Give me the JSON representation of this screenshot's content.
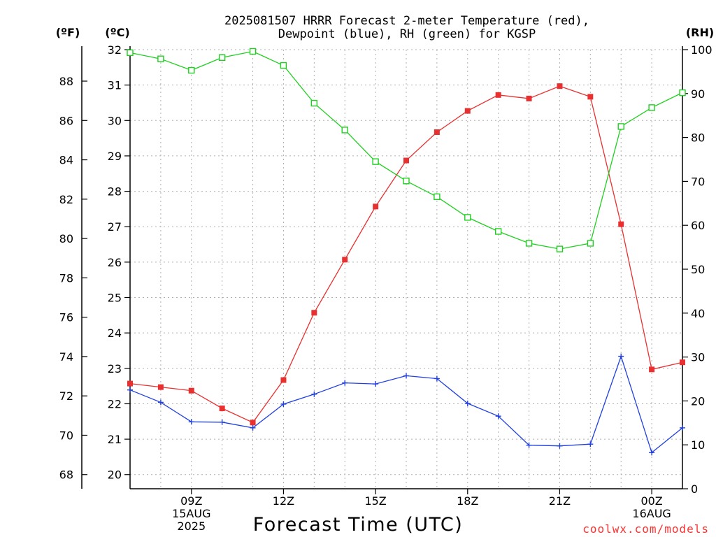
{
  "chart_data": {
    "type": "line",
    "title_line1": "2025081507 HRRR Forecast 2-meter Temperature (red),",
    "title_line2": "Dewpoint (blue), RH (green) for KGSP",
    "xlabel": "Forecast Time (UTC)",
    "watermark": "coolwx.com/models",
    "left_f_axis_label": "(ºF)",
    "left_c_axis_label": "(ºC)",
    "right_axis_label": "(RH)",
    "x_hours": [
      7,
      8,
      9,
      10,
      11,
      12,
      13,
      14,
      15,
      16,
      17,
      18,
      19,
      20,
      21,
      22,
      23,
      24,
      25
    ],
    "x_range": [
      7,
      25
    ],
    "x_ticks": [
      {
        "hour": 9,
        "lines": [
          "09Z",
          "15AUG",
          "2025"
        ]
      },
      {
        "hour": 12,
        "lines": [
          "12Z"
        ]
      },
      {
        "hour": 15,
        "lines": [
          "15Z"
        ]
      },
      {
        "hour": 18,
        "lines": [
          "18Z"
        ]
      },
      {
        "hour": 21,
        "lines": [
          "21Z"
        ]
      },
      {
        "hour": 24,
        "lines": [
          "00Z",
          "16AUG"
        ]
      }
    ],
    "y_c_range": [
      19.6,
      32
    ],
    "y_c_ticks": [
      20,
      21,
      22,
      23,
      24,
      25,
      26,
      27,
      28,
      29,
      30,
      31,
      32
    ],
    "y_f_ticks": [
      68,
      70,
      72,
      74,
      76,
      78,
      80,
      82,
      84,
      86,
      88
    ],
    "y_rh_range": [
      0,
      100
    ],
    "y_rh_ticks": [
      0,
      10,
      20,
      30,
      40,
      50,
      60,
      70,
      80,
      90,
      100
    ],
    "grid": true,
    "series": [
      {
        "name": "Temperature",
        "color": "#e83030",
        "marker": "filled-square",
        "axis": "c",
        "values": [
          22.57,
          22.47,
          22.37,
          21.87,
          21.47,
          22.67,
          24.57,
          26.07,
          27.57,
          28.87,
          29.67,
          30.27,
          30.72,
          30.62,
          30.97,
          30.67,
          27.07,
          22.97,
          23.17
        ]
      },
      {
        "name": "Dewpoint",
        "color": "#2040e0",
        "marker": "plus",
        "axis": "c",
        "values": [
          22.39,
          22.04,
          21.49,
          21.48,
          21.32,
          21.99,
          22.27,
          22.59,
          22.56,
          22.79,
          22.71,
          22.01,
          21.65,
          20.83,
          20.81,
          20.86,
          23.34,
          20.62,
          21.32
        ]
      },
      {
        "name": "RH",
        "color": "#20d020",
        "marker": "open-square",
        "axis": "rh",
        "values": [
          99.3,
          97.9,
          95.3,
          98.2,
          99.6,
          96.4,
          87.8,
          81.7,
          74.5,
          70.1,
          66.5,
          61.8,
          58.6,
          55.9,
          54.6,
          55.9,
          82.5,
          86.8,
          90.2
        ]
      }
    ]
  }
}
